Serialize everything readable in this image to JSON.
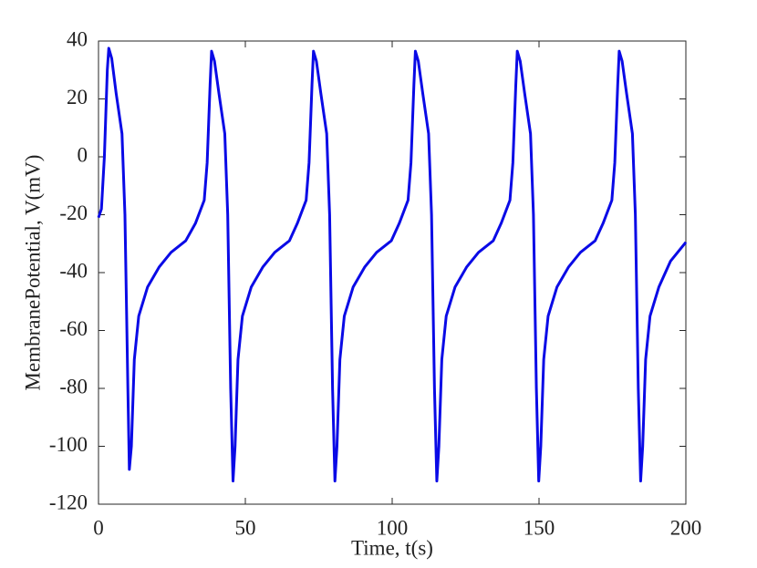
{
  "chart_data": {
    "type": "line",
    "x_label": "Time, t(s)",
    "y_label": "MembranePotential, V(mV)",
    "x": [
      0,
      1,
      2,
      3,
      3.5,
      4.5,
      6,
      8,
      9,
      10,
      10.5,
      11.2,
      12.2,
      13.7,
      16.7,
      20.7,
      24.7,
      29.7,
      33,
      36,
      37,
      38,
      38.5,
      39.5,
      41,
      43,
      44,
      45,
      45.8,
      46.5,
      47.5,
      49,
      52,
      56,
      60,
      65,
      67.7,
      70.7,
      71.7,
      72.7,
      73.2,
      74.2,
      75.7,
      77.7,
      78.7,
      79.7,
      80.5,
      81.2,
      82.2,
      83.7,
      86.7,
      90.7,
      94.7,
      99.7,
      102.4,
      105.4,
      106.4,
      107.4,
      107.9,
      108.9,
      110.4,
      112.4,
      113.4,
      114.4,
      115.2,
      115.9,
      116.9,
      118.4,
      121.4,
      125.4,
      129.4,
      134.4,
      137.1,
      140.1,
      141.1,
      142.1,
      142.6,
      143.6,
      145.1,
      147.1,
      148.1,
      149.1,
      149.9,
      150.6,
      151.6,
      153.1,
      156.1,
      160.1,
      164.1,
      169.1,
      171.8,
      174.8,
      175.8,
      176.8,
      177.3,
      178.3,
      179.8,
      181.8,
      182.8,
      183.8,
      184.6,
      185.3,
      186.3,
      187.8,
      190.8,
      194.8,
      200
    ],
    "series": [
      {
        "color": "#0a0ae6",
        "values": [
          -21,
          -18,
          0,
          30,
          37.5,
          34,
          22,
          8,
          -20,
          -80,
          -108,
          -100,
          -70,
          -55,
          -45,
          -38,
          -33,
          -29,
          -23,
          -15,
          -2,
          25,
          36.5,
          33,
          22,
          8,
          -20,
          -80,
          -112,
          -100,
          -70,
          -55,
          -45,
          -38,
          -33,
          -29,
          -23,
          -15,
          -2,
          25,
          36.5,
          33,
          22,
          8,
          -20,
          -80,
          -112,
          -100,
          -70,
          -55,
          -45,
          -38,
          -33,
          -29,
          -23,
          -15,
          -2,
          25,
          36.5,
          33,
          22,
          8,
          -20,
          -80,
          -112,
          -100,
          -70,
          -55,
          -45,
          -38,
          -33,
          -29,
          -23,
          -15,
          -2,
          25,
          36.5,
          33,
          22,
          8,
          -20,
          -80,
          -112,
          -100,
          -70,
          -55,
          -45,
          -38,
          -33,
          -29,
          -23,
          -15,
          -2,
          25,
          36.5,
          33,
          22,
          8,
          -20,
          -80,
          -112,
          -100,
          -70,
          -55,
          -45,
          -36,
          -29.5
        ]
      }
    ],
    "xlim": [
      0,
      200
    ],
    "xticks": [
      0,
      50,
      100,
      150,
      200
    ],
    "ylim": [
      -120,
      40
    ],
    "yticks": [
      -120,
      -100,
      -80,
      -60,
      -40,
      -20,
      0,
      20,
      40
    ],
    "grid": false
  }
}
